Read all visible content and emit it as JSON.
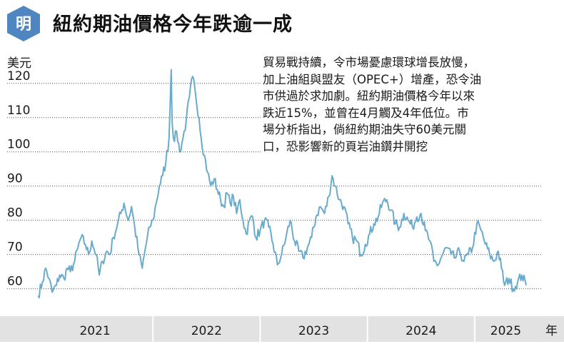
{
  "header": {
    "logo_text": "明",
    "title": "紐約期油價格今年跌逾一成"
  },
  "caption": {
    "lines": [
      "貿易戰持續，令市場憂慮環球增長放慢，",
      "加上油組與盟友（OPEC+）增產，恐令油",
      "市供過於求加劇。紐約期油價格今年以來",
      "跌近15%，並曾在4月觸及4年低位。市",
      "場分析指出，倘紐約期油失守60美元關",
      "口，恐影響新的頁岩油鑽井開挖"
    ]
  },
  "colors": {
    "line": "#6aaacd",
    "grid": "#555555",
    "xaxis_band": "#e2e2e2",
    "logo": "#4f86c1"
  },
  "chart_data": {
    "type": "line",
    "title": "紐約期油價格今年跌逾一成",
    "ylabel": "美元",
    "xlabel": "年",
    "ylim": [
      52,
      126
    ],
    "xlim": [
      2020.92,
      2025.58
    ],
    "yticks": [
      60,
      70,
      80,
      90,
      100,
      110,
      120
    ],
    "ytick_labels": [
      "60",
      "70",
      "80",
      "90",
      "100",
      "110",
      "120"
    ],
    "x_categories": [
      "2021",
      "2022",
      "2023",
      "2024",
      "2025"
    ],
    "x_category_bounds": [
      [
        2020.92,
        2022.0
      ],
      [
        2022.0,
        2023.0
      ],
      [
        2023.0,
        2024.0
      ],
      [
        2024.0,
        2025.0
      ],
      [
        2025.0,
        2025.58
      ]
    ],
    "grid": true,
    "series": [
      {
        "name": "",
        "x": [
          2020.93,
          2020.97,
          2021.0,
          2021.03,
          2021.06,
          2021.1,
          2021.13,
          2021.17,
          2021.2,
          2021.23,
          2021.27,
          2021.3,
          2021.33,
          2021.37,
          2021.4,
          2021.43,
          2021.47,
          2021.5,
          2021.53,
          2021.57,
          2021.6,
          2021.63,
          2021.67,
          2021.7,
          2021.73,
          2021.77,
          2021.8,
          2021.83,
          2021.87,
          2021.9,
          2021.93,
          2021.97,
          2022.0,
          2022.03,
          2022.06,
          2022.09,
          2022.12,
          2022.15,
          2022.17,
          2022.18,
          2022.2,
          2022.22,
          2022.25,
          2022.28,
          2022.31,
          2022.34,
          2022.37,
          2022.4,
          2022.43,
          2022.45,
          2022.48,
          2022.51,
          2022.54,
          2022.57,
          2022.6,
          2022.63,
          2022.66,
          2022.69,
          2022.72,
          2022.75,
          2022.78,
          2022.81,
          2022.84,
          2022.87,
          2022.9,
          2022.93,
          2022.96,
          2023.0,
          2023.04,
          2023.08,
          2023.12,
          2023.16,
          2023.2,
          2023.24,
          2023.28,
          2023.32,
          2023.36,
          2023.4,
          2023.44,
          2023.48,
          2023.52,
          2023.56,
          2023.6,
          2023.64,
          2023.67,
          2023.7,
          2023.74,
          2023.78,
          2023.82,
          2023.86,
          2023.9,
          2023.94,
          2023.98,
          2024.02,
          2024.06,
          2024.1,
          2024.14,
          2024.18,
          2024.22,
          2024.26,
          2024.3,
          2024.34,
          2024.38,
          2024.42,
          2024.46,
          2024.5,
          2024.54,
          2024.58,
          2024.62,
          2024.66,
          2024.7,
          2024.74,
          2024.78,
          2024.82,
          2024.86,
          2024.9,
          2024.94,
          2024.98,
          2025.02,
          2025.06,
          2025.1,
          2025.14,
          2025.18,
          2025.22,
          2025.25,
          2025.28,
          2025.32,
          2025.36,
          2025.4,
          2025.44,
          2025.48
        ],
        "values": [
          58,
          62,
          66,
          63,
          59,
          61,
          64,
          63,
          66,
          65,
          68,
          72,
          75,
          73,
          70,
          74,
          70,
          64,
          68,
          71,
          70,
          75,
          79,
          82,
          85,
          80,
          84,
          78,
          70,
          66,
          72,
          78,
          80,
          85,
          90,
          93,
          97,
          104,
          124,
          108,
          103,
          106,
          100,
          104,
          109,
          116,
          122,
          116,
          110,
          104,
          99,
          94,
          90,
          92,
          89,
          86,
          84,
          88,
          85,
          87,
          82,
          86,
          80,
          76,
          80,
          81,
          75,
          77,
          80,
          78,
          73,
          67,
          70,
          75,
          80,
          74,
          71,
          69,
          72,
          75,
          81,
          84,
          82,
          87,
          93,
          90,
          86,
          84,
          79,
          75,
          74,
          70,
          73,
          76,
          79,
          81,
          85,
          86,
          83,
          79,
          78,
          82,
          80,
          78,
          81,
          82,
          77,
          74,
          68,
          67,
          70,
          72,
          70,
          69,
          71,
          68,
          70,
          72,
          79,
          77,
          73,
          70,
          68,
          71,
          66,
          61,
          63,
          60,
          62,
          64,
          61
        ]
      }
    ]
  }
}
